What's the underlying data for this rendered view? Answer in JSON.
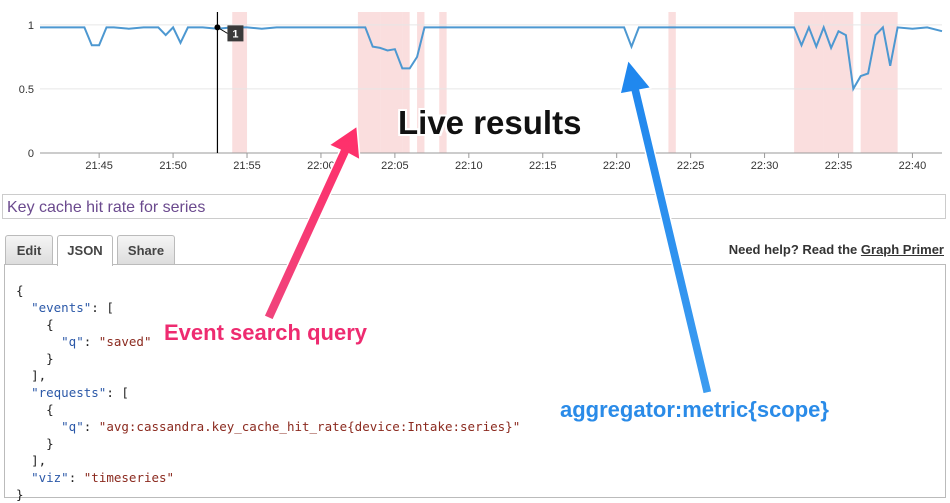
{
  "chart_data": {
    "type": "line",
    "x_ticks": [
      "21:45",
      "21:50",
      "21:55",
      "22:00",
      "22:05",
      "22:10",
      "22:15",
      "22:20",
      "22:25",
      "22:30",
      "22:35",
      "22:40"
    ],
    "y_ticks": [
      "0",
      "0.5",
      "1"
    ],
    "ylim": [
      0,
      1.1
    ],
    "xlim": [
      "21:41",
      "22:42"
    ],
    "grid": true,
    "line_color": "#4d98d1",
    "event_band_color": "#f4b6b6",
    "cursor_marker_label": "1",
    "series": [
      {
        "x": [
          "21:41",
          "21:42",
          "21:43",
          "21:44",
          "21:44.5",
          "21:45",
          "21:45.5",
          "21:46",
          "21:47",
          "21:48",
          "21:49",
          "21:49.5",
          "21:50",
          "21:50.5",
          "21:51",
          "21:52",
          "21:53",
          "21:54",
          "21:55",
          "21:56",
          "21:57",
          "21:58",
          "21:59",
          "22:00",
          "22:01",
          "22:02",
          "22:03",
          "22:03.5",
          "22:04",
          "22:04.5",
          "22:05",
          "22:05.5",
          "22:06",
          "22:06.5",
          "22:07",
          "22:07.5",
          "22:08",
          "22:09",
          "22:10",
          "22:11",
          "22:12",
          "22:13",
          "22:14",
          "22:15",
          "22:16",
          "22:17",
          "22:18",
          "22:19",
          "22:20",
          "22:20.5",
          "22:21",
          "22:21.5",
          "22:22",
          "22:23",
          "22:24",
          "22:25",
          "22:26",
          "22:27",
          "22:28",
          "22:29",
          "22:30",
          "22:31",
          "22:32",
          "22:32.5",
          "22:33",
          "22:33.5",
          "22:34",
          "22:34.5",
          "22:35",
          "22:35.5",
          "22:36",
          "22:36.5",
          "22:37",
          "22:37.5",
          "22:38",
          "22:38.5",
          "22:39",
          "22:40",
          "22:41",
          "22:42"
        ],
        "values": [
          0.98,
          0.98,
          0.98,
          0.98,
          0.84,
          0.84,
          0.98,
          0.98,
          0.97,
          0.98,
          0.98,
          0.92,
          0.98,
          0.86,
          0.98,
          0.98,
          0.97,
          0.98,
          0.98,
          0.97,
          0.98,
          0.98,
          0.98,
          0.98,
          0.98,
          0.98,
          0.98,
          0.83,
          0.82,
          0.8,
          0.81,
          0.66,
          0.66,
          0.75,
          0.98,
          0.98,
          0.98,
          0.98,
          0.98,
          0.98,
          0.98,
          0.98,
          0.98,
          0.98,
          0.98,
          0.98,
          0.98,
          0.98,
          0.98,
          0.98,
          0.83,
          0.98,
          0.98,
          0.98,
          0.98,
          0.98,
          0.98,
          0.98,
          0.98,
          0.98,
          0.98,
          0.98,
          0.98,
          0.84,
          0.98,
          0.83,
          0.98,
          0.82,
          0.95,
          0.92,
          0.5,
          0.6,
          0.62,
          0.92,
          0.98,
          0.68,
          0.98,
          0.97,
          0.98,
          0.95
        ]
      }
    ],
    "event_bands": [
      [
        "21:54",
        "21:55"
      ],
      [
        "22:02.5",
        "22:04"
      ],
      [
        "22:04",
        "22:05.5"
      ],
      [
        "22:05.5",
        "22:06"
      ],
      [
        "22:06.5",
        "22:07"
      ],
      [
        "22:08",
        "22:08.5"
      ],
      [
        "22:23.5",
        "22:24"
      ],
      [
        "22:32",
        "22:33"
      ],
      [
        "22:33",
        "22:34"
      ],
      [
        "22:34",
        "22:36"
      ],
      [
        "22:36.5",
        "22:39"
      ]
    ],
    "cursor_x": "21:53"
  },
  "graph_title": "Key cache hit rate for series",
  "tabs": [
    {
      "label": "Edit",
      "active": false
    },
    {
      "label": "JSON",
      "active": true
    },
    {
      "label": "Share",
      "active": false
    }
  ],
  "help": {
    "prefix": "Need help? Read the ",
    "link": "Graph Primer"
  },
  "json_code": {
    "l1": "{",
    "events_key": "\"events\"",
    "events_open": ": [",
    "brace_open": "{",
    "q_key": "\"q\"",
    "colon": ": ",
    "events_q": "\"saved\"",
    "brace_close": "}",
    "arr_close_comma": "],",
    "requests_key": "\"requests\"",
    "requests_open": ": [",
    "requests_q": "\"avg:cassandra.key_cache_hit_rate{device:Intake:series}\"",
    "viz_key": "\"viz\"",
    "viz_val": "\"timeseries\"",
    "l_end": "}"
  },
  "annotations": {
    "live": "Live results",
    "event": "Event search query",
    "agg": "aggregator:metric{scope}",
    "live_color": "#111111",
    "event_color": "#ee2b70",
    "agg_color": "#2a8be8"
  }
}
